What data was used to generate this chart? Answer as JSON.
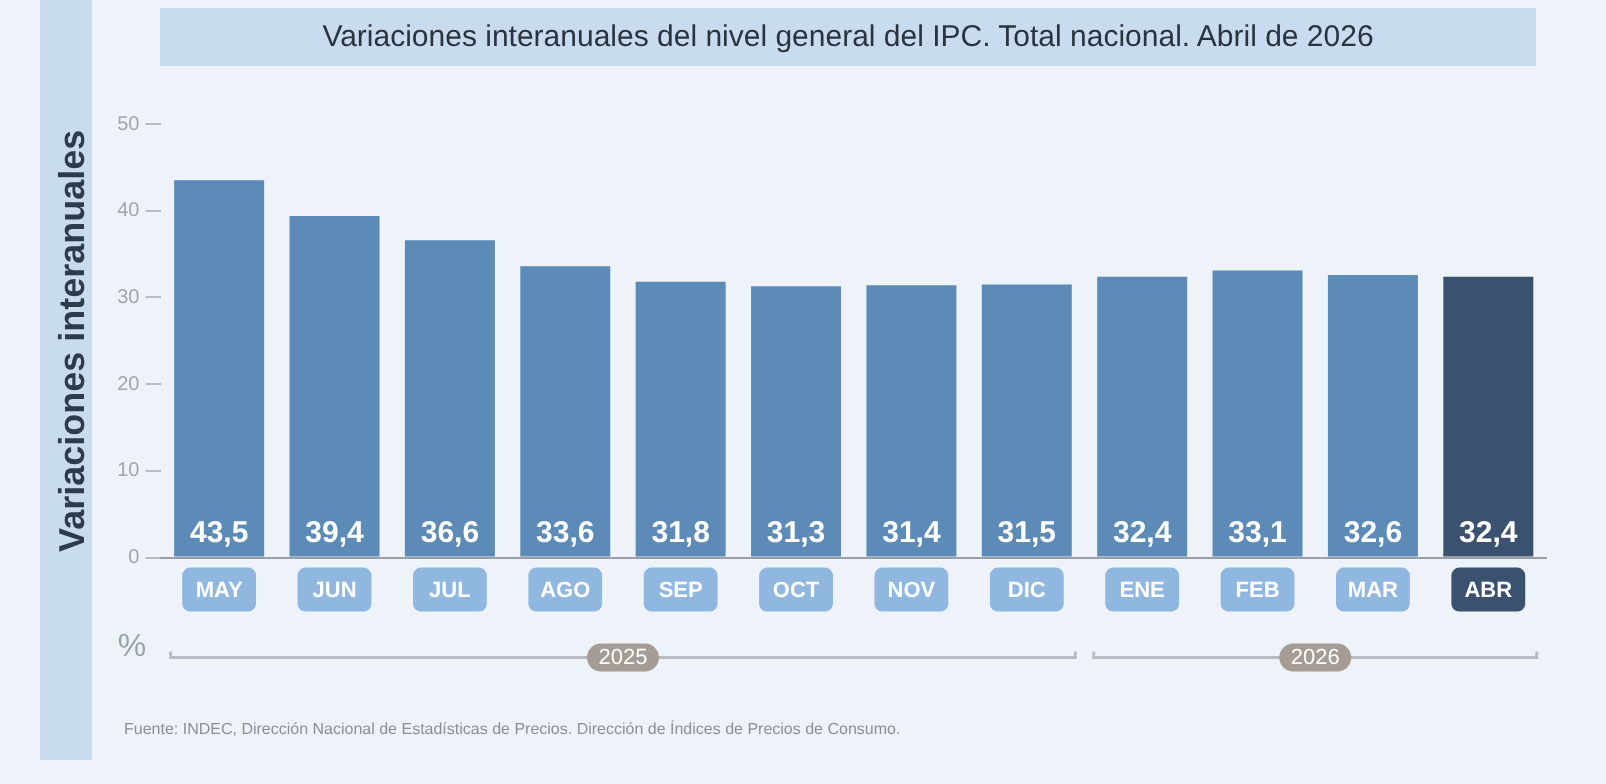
{
  "chart_data": {
    "type": "bar",
    "title": "Variaciones interanuales del nivel general del IPC. Total nacional. Abril de 2026",
    "ylabel": "Variaciones interanuales",
    "categories": [
      "MAY",
      "JUN",
      "JUL",
      "AGO",
      "SEP",
      "OCT",
      "NOV",
      "DIC",
      "ENE",
      "FEB",
      "MAR",
      "ABR"
    ],
    "values": [
      43.5,
      39.4,
      36.6,
      33.6,
      31.8,
      31.3,
      31.4,
      31.5,
      32.4,
      33.1,
      32.6,
      32.4
    ],
    "value_labels": [
      "43,5",
      "39,4",
      "36,6",
      "33,6",
      "31,8",
      "31,3",
      "31,4",
      "31,5",
      "32,4",
      "33,1",
      "32,6",
      "32,4"
    ],
    "colors": [
      "#5d8bb7",
      "#5d8bb7",
      "#5d8bb7",
      "#5d8bb7",
      "#5d8bb7",
      "#5d8bb7",
      "#5d8bb7",
      "#5d8bb7",
      "#5d8bb7",
      "#5d8bb7",
      "#5d8bb7",
      "#3a5170"
    ],
    "ylim": [
      0,
      50
    ],
    "yticks": [
      0,
      10,
      20,
      30,
      40,
      50
    ],
    "grid": false,
    "legend": false,
    "annotations": [
      "%",
      "2025",
      "2026",
      "Fuente: INDEC, Dirección Nacional de Estadísticas de Precios. Dirección de Índices de Precios de Consumo."
    ]
  }
}
